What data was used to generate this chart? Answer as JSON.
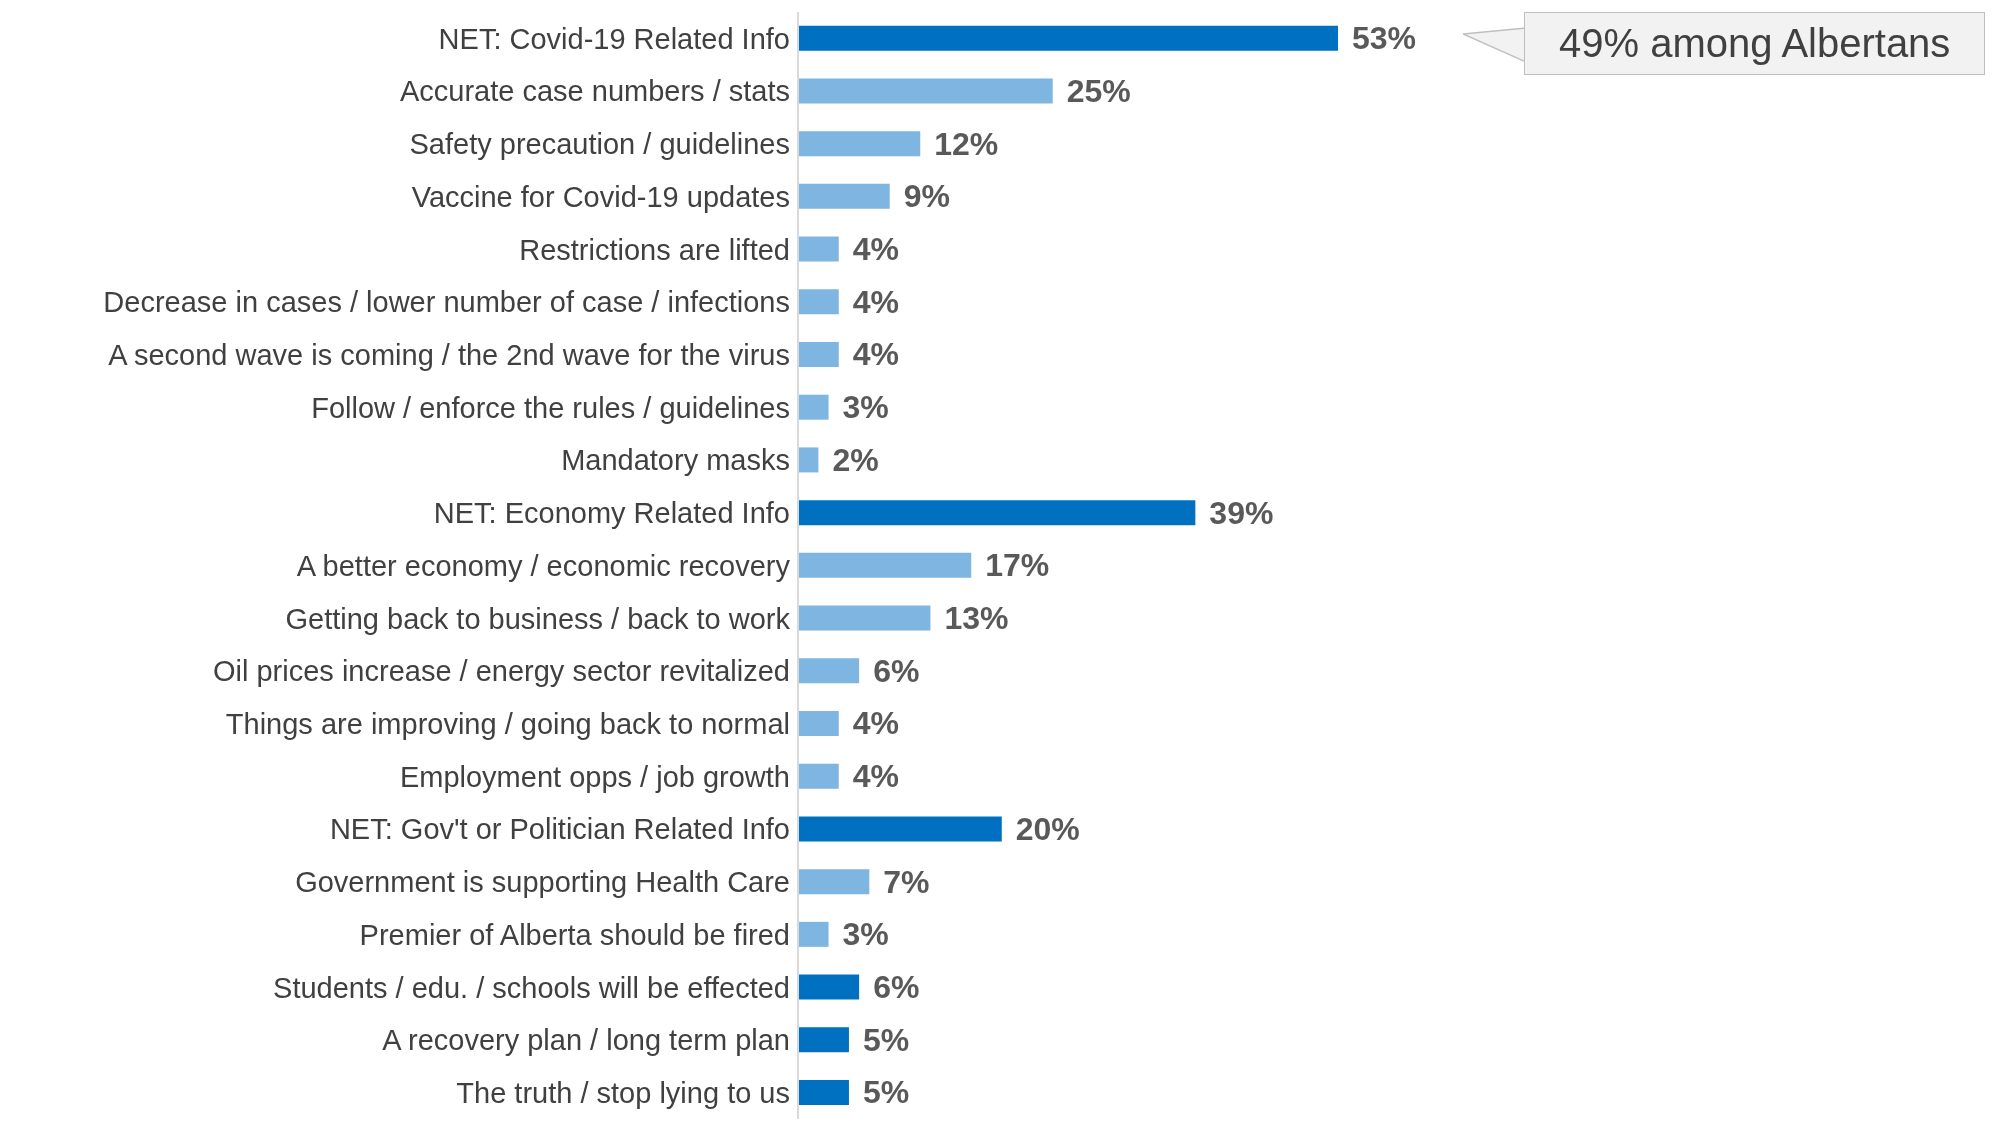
{
  "chart_data": {
    "type": "bar",
    "orientation": "horizontal",
    "relative": false,
    "categories": [
      "NET: Covid-19 Related Info",
      "Accurate case numbers / stats",
      "Safety precaution / guidelines",
      "Vaccine for Covid-19 updates",
      "Restrictions are lifted",
      "Decrease in cases / lower number of case / infections",
      "A second wave is coming / the 2nd wave for the virus",
      "Follow / enforce the rules / guidelines",
      "Mandatory masks",
      "NET: Economy Related Info",
      "A better economy / economic recovery",
      "Getting back to business / back to work",
      "Oil prices increase / energy sector revitalized",
      "Things are improving / going back to normal",
      "Employment opps / job growth",
      "NET: Gov't or Politician Related Info",
      "Government is supporting Health Care",
      "Premier of Alberta should be fired",
      "Students / edu. / schools will be effected",
      "A recovery plan / long term plan",
      "The truth / stop lying to us"
    ],
    "values": [
      53,
      25,
      12,
      9,
      4,
      4,
      4,
      3,
      2,
      39,
      17,
      13,
      6,
      4,
      4,
      20,
      7,
      3,
      6,
      5,
      5
    ],
    "value_labels": [
      "53%",
      "25%",
      "12%",
      "9%",
      "4%",
      "4%",
      "4%",
      "3%",
      "2%",
      "39%",
      "17%",
      "13%",
      "6%",
      "4%",
      "4%",
      "20%",
      "7%",
      "3%",
      "6%",
      "5%",
      "5%"
    ],
    "colors": [
      "#0070c0",
      "#7fb5e1",
      "#7fb5e1",
      "#7fb5e1",
      "#7fb5e1",
      "#7fb5e1",
      "#7fb5e1",
      "#7fb5e1",
      "#7fb5e1",
      "#0070c0",
      "#7fb5e1",
      "#7fb5e1",
      "#7fb5e1",
      "#7fb5e1",
      "#7fb5e1",
      "#0070c0",
      "#7fb5e1",
      "#7fb5e1",
      "#0070c0",
      "#0070c0",
      "#0070c0"
    ],
    "annotations": [
      "49% among Albertans"
    ],
    "grid": false,
    "legend": false
  }
}
